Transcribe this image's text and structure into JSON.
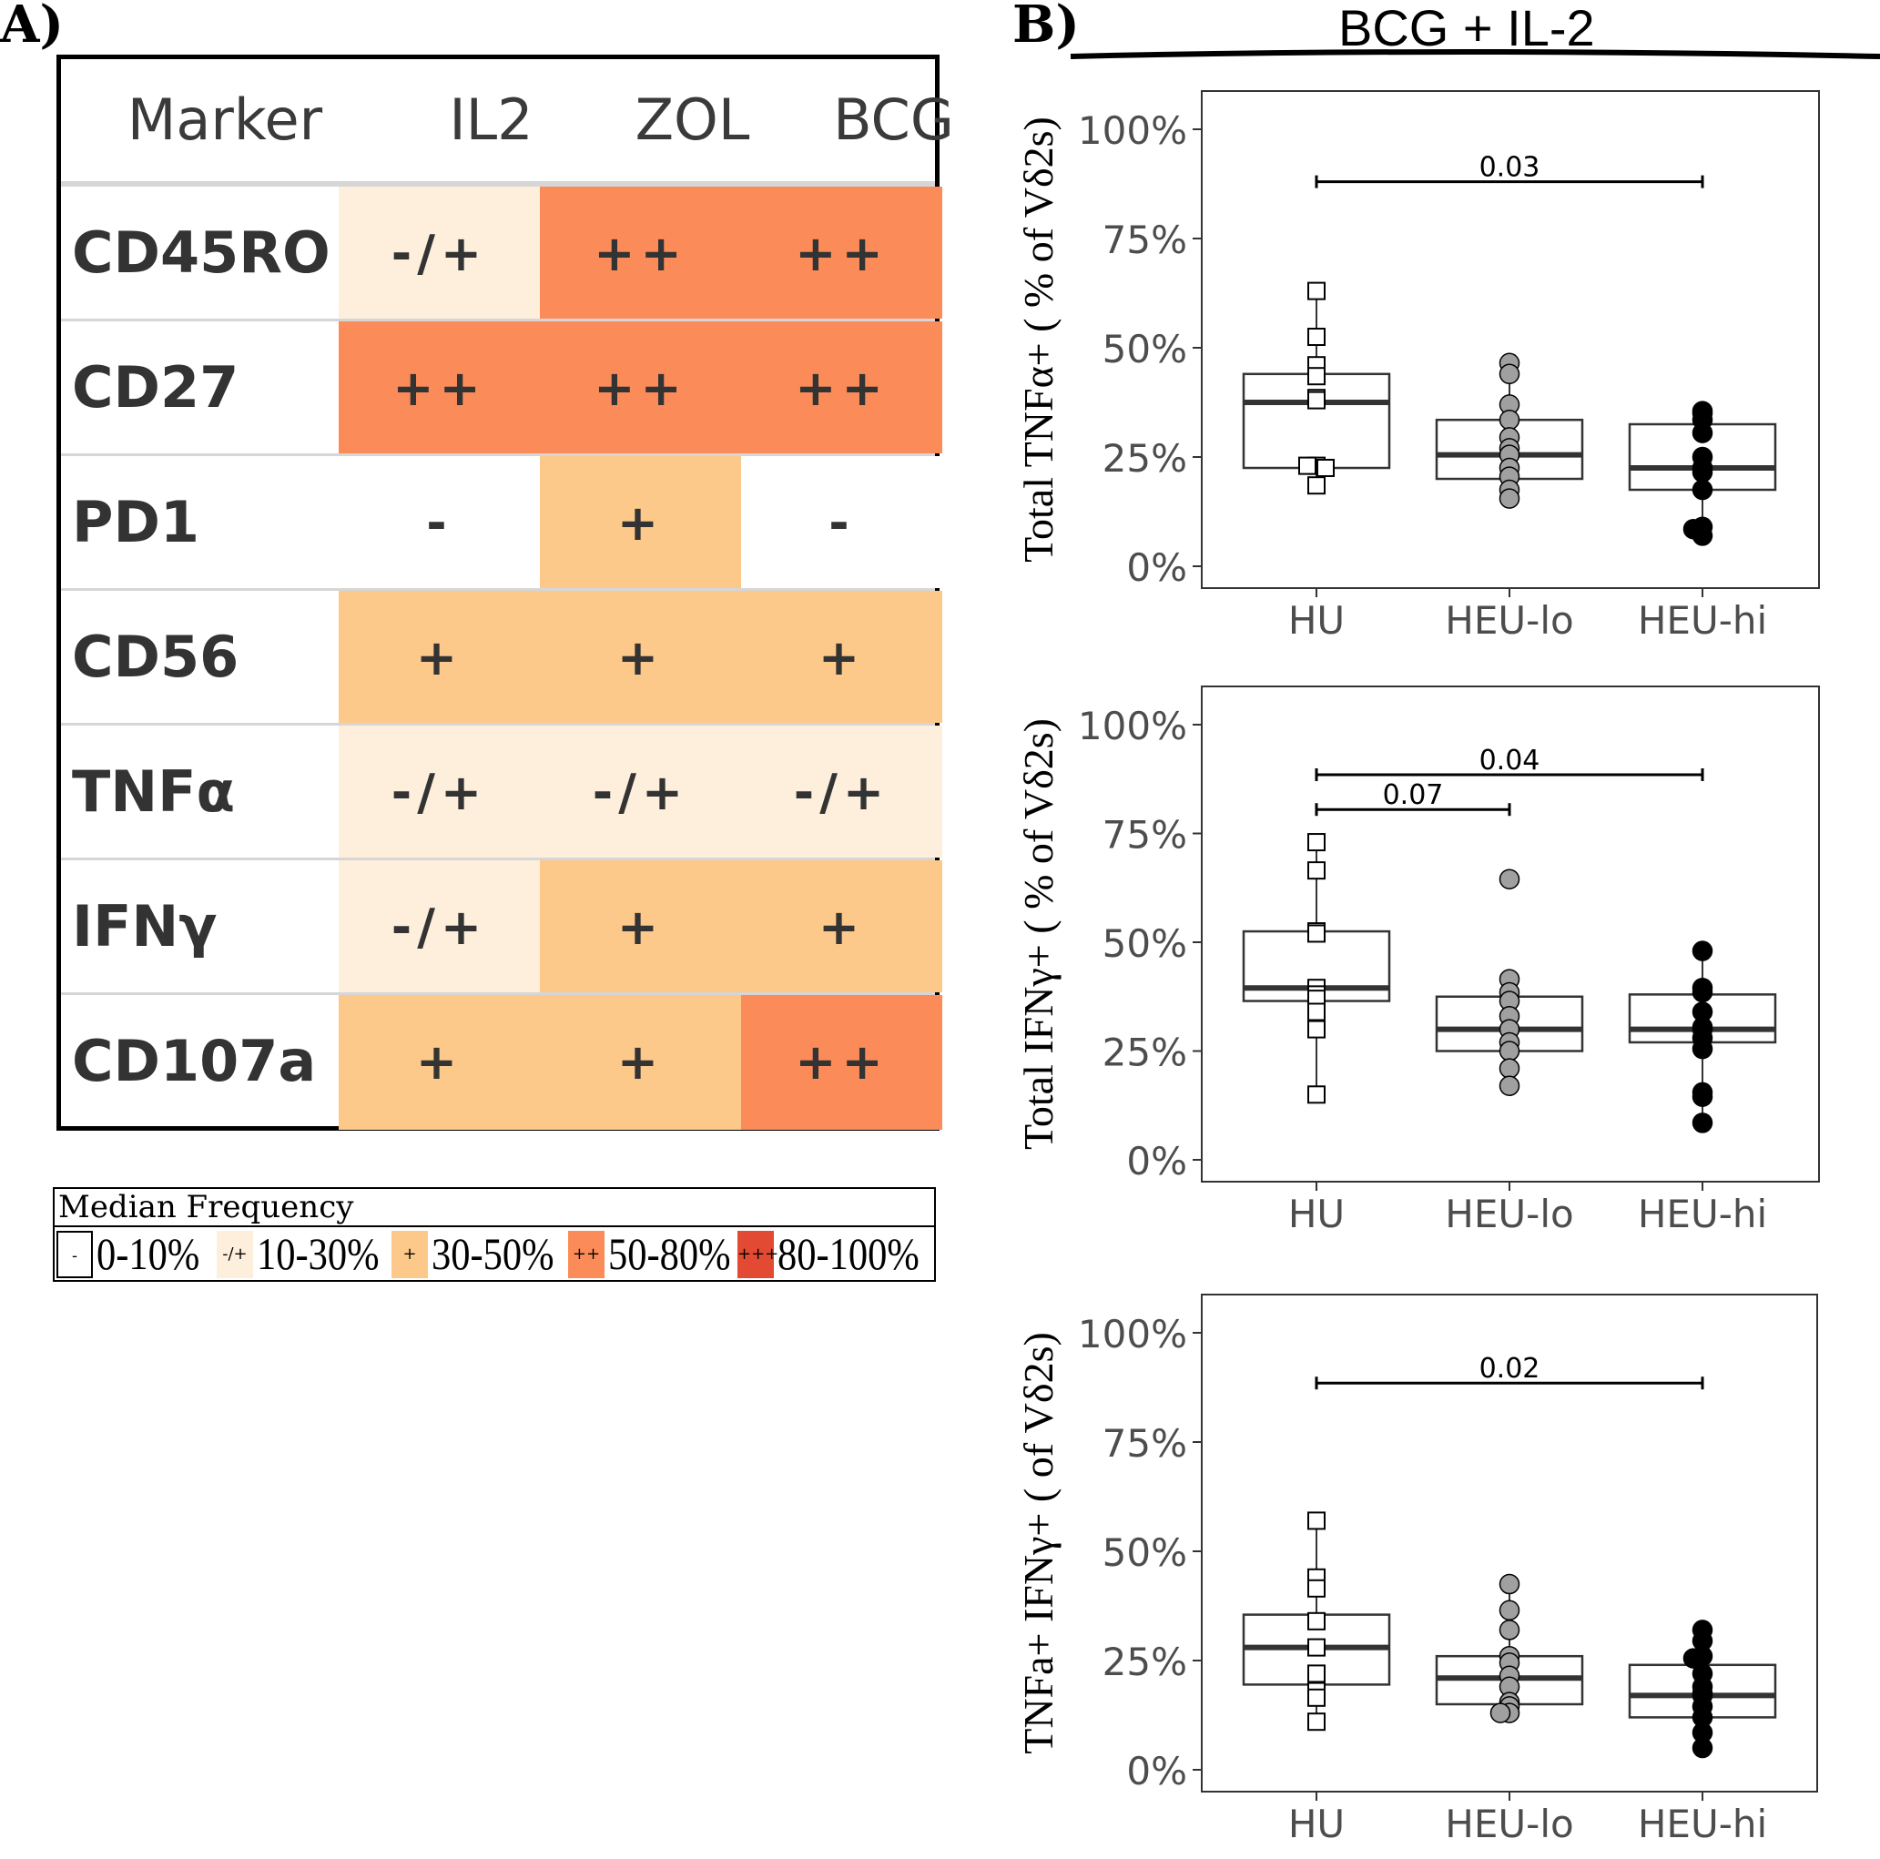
{
  "panel_a": {
    "label": "A)",
    "table": {
      "header": [
        "Marker",
        "IL2",
        "ZOL",
        "BCG"
      ],
      "rows": [
        {
          "marker": "CD45RO",
          "values": [
            "-/+",
            "++",
            "++"
          ]
        },
        {
          "marker": "CD27",
          "values": [
            "++",
            "++",
            "++"
          ]
        },
        {
          "marker": "PD1",
          "values": [
            "-",
            "+",
            "-"
          ]
        },
        {
          "marker": "CD56",
          "values": [
            "+",
            "+",
            "+"
          ]
        },
        {
          "marker": "TNFα",
          "values": [
            "-/+",
            "-/+",
            "-/+"
          ]
        },
        {
          "marker": "IFNγ",
          "values": [
            "-/+",
            "+",
            "+"
          ]
        },
        {
          "marker": "CD107a",
          "values": [
            "+",
            "+",
            "++"
          ]
        }
      ]
    },
    "legend": {
      "title": "Median Frequency",
      "items": [
        {
          "symbol": "-",
          "range": "0-10%",
          "color": "#ffffff"
        },
        {
          "symbol": "-/+",
          "range": "10-30%",
          "color": "#fdefdc"
        },
        {
          "symbol": "+",
          "range": "30-50%",
          "color": "#fcc98a"
        },
        {
          "symbol": "++",
          "range": "50-80%",
          "color": "#fb8c59"
        },
        {
          "symbol": "+++",
          "range": "80-100%",
          "color": "#e34a33"
        }
      ]
    }
  },
  "panel_b": {
    "label": "B)",
    "title": "BCG + IL-2"
  },
  "chart_data": [
    {
      "type": "box",
      "ylabel": "Total TNFα+  ( % of  Vδ2s)",
      "categories": [
        "HU",
        "HEU-lo",
        "HEU-hi"
      ],
      "yticks": [
        "0%",
        "25%",
        "50%",
        "75%",
        "100%"
      ],
      "ylim": [
        0,
        100
      ],
      "boxes": [
        {
          "group": "HU",
          "q1": 22.5,
          "median": 37.5,
          "q3": 44,
          "whisker_low": 18,
          "whisker_high": 63
        },
        {
          "group": "HEU-lo",
          "q1": 20,
          "median": 25.5,
          "q3": 33.5,
          "whisker_low": 15,
          "whisker_high": 46
        },
        {
          "group": "HEU-hi",
          "q1": 17.5,
          "median": 22.5,
          "q3": 32.5,
          "whisker_low": 6.5,
          "whisker_high": 36
        }
      ],
      "points": [
        {
          "group": "HU",
          "values": [
            63,
            52.5,
            46,
            43.5,
            38.5,
            38,
            23,
            23,
            22.5,
            18.5
          ]
        },
        {
          "group": "HEU-lo",
          "values": [
            46.5,
            44,
            37,
            33.5,
            29.5,
            27,
            25.5,
            22.5,
            20.5,
            17.5,
            15.5
          ]
        },
        {
          "group": "HEU-hi",
          "values": [
            35.5,
            35,
            33.5,
            30.5,
            25,
            22.5,
            21.5,
            17.5,
            9,
            8.5,
            7
          ]
        }
      ],
      "annotations": [
        {
          "from": "HU",
          "to": "HEU-hi",
          "y": 88,
          "label": "0.03"
        }
      ]
    },
    {
      "type": "box",
      "ylabel": "Total IFNγ+  ( % of  Vδ2s)",
      "categories": [
        "HU",
        "HEU-lo",
        "HEU-hi"
      ],
      "yticks": [
        "0%",
        "25%",
        "50%",
        "75%",
        "100%"
      ],
      "ylim": [
        0,
        100
      ],
      "boxes": [
        {
          "group": "HU",
          "q1": 36.5,
          "median": 39.5,
          "q3": 52.5,
          "whisker_low": 15,
          "whisker_high": 73
        },
        {
          "group": "HEU-lo",
          "q1": 25,
          "median": 30,
          "q3": 37.5,
          "whisker_low": 17,
          "whisker_high": 42
        },
        {
          "group": "HEU-hi",
          "q1": 27,
          "median": 30,
          "q3": 38,
          "whisker_low": 8.5,
          "whisker_high": 48
        }
      ],
      "points": [
        {
          "group": "HU",
          "values": [
            73,
            66.5,
            52.5,
            52,
            39.5,
            38,
            37,
            34,
            30,
            15
          ]
        },
        {
          "group": "HEU-lo",
          "values": [
            64.5,
            41.5,
            38.5,
            36.5,
            33,
            30,
            27,
            25,
            21,
            17
          ]
        },
        {
          "group": "HEU-hi",
          "values": [
            48,
            39.5,
            38.5,
            34,
            30.5,
            30,
            28,
            25.5,
            15.5,
            14.5,
            8.5
          ]
        }
      ],
      "annotations": [
        {
          "from": "HU",
          "to": "HEU-hi",
          "y": 88.5,
          "label": "0.04"
        },
        {
          "from": "HU",
          "to": "HEU-lo",
          "y": 80.5,
          "label": "0.07"
        }
      ]
    },
    {
      "type": "box",
      "ylabel": "TNFa+ IFNγ+  ( of  Vδ2s)",
      "categories": [
        "HU",
        "HEU-lo",
        "HEU-hi"
      ],
      "yticks": [
        "0%",
        "25%",
        "50%",
        "75%",
        "100%"
      ],
      "ylim": [
        0,
        100
      ],
      "boxes": [
        {
          "group": "HU",
          "q1": 19.5,
          "median": 28,
          "q3": 35.5,
          "whisker_low": 11,
          "whisker_high": 57
        },
        {
          "group": "HEU-lo",
          "q1": 15,
          "median": 21,
          "q3": 26,
          "whisker_low": 13,
          "whisker_high": 42.5
        },
        {
          "group": "HEU-hi",
          "q1": 12,
          "median": 17,
          "q3": 24,
          "whisker_low": 5,
          "whisker_high": 32
        }
      ],
      "points": [
        {
          "group": "HU",
          "values": [
            57,
            44,
            41.5,
            34,
            28,
            22,
            18,
            16.5,
            11
          ]
        },
        {
          "group": "HEU-lo",
          "values": [
            42.5,
            36.5,
            32,
            26,
            24.5,
            21.5,
            19,
            15.5,
            14.5,
            13,
            13
          ]
        },
        {
          "group": "HEU-hi",
          "values": [
            32,
            29.5,
            26,
            25.5,
            22,
            19,
            17.5,
            17,
            14.5,
            12,
            8.5,
            5
          ]
        }
      ],
      "annotations": [
        {
          "from": "HU",
          "to": "HEU-hi",
          "y": 88.5,
          "label": "0.02"
        }
      ]
    }
  ]
}
